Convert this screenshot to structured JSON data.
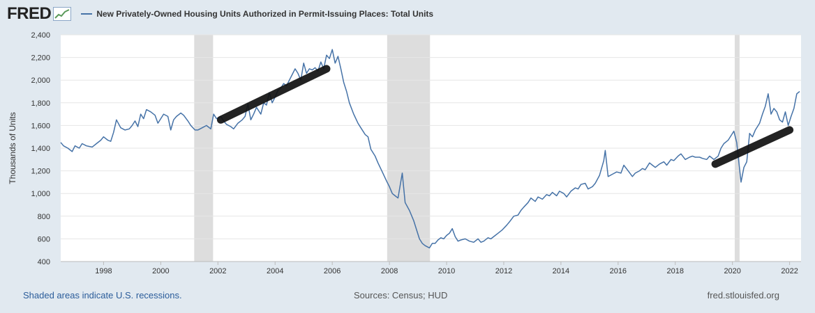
{
  "brand": {
    "logo_text": "FRED"
  },
  "colors": {
    "series": "#4572a7",
    "recession": "#dddddd",
    "annotation": "#111111",
    "background": "#e1e9f0"
  },
  "footer": {
    "note": "Shaded areas indicate U.S. recessions.",
    "sources": "Sources: Census; HUD",
    "url": "fred.stlouisfed.org"
  },
  "chart_data": {
    "type": "line",
    "title": "New Privately-Owned Housing Units Authorized in Permit-Issuing Places: Total Units",
    "ylabel": "Thousands of Units",
    "xlim": [
      1996.5,
      2022.4
    ],
    "ylim": [
      400,
      2400
    ],
    "yticks": [
      "400",
      "600",
      "800",
      "1,000",
      "1,200",
      "1,400",
      "1,600",
      "1,800",
      "2,000",
      "2,200",
      "2,400"
    ],
    "xticks": [
      "1998",
      "2000",
      "2002",
      "2004",
      "2006",
      "2008",
      "2010",
      "2012",
      "2014",
      "2016",
      "2018",
      "2020",
      "2022"
    ],
    "grid": "horizontal",
    "recessions": [
      [
        2001.17,
        2001.83
      ],
      [
        2007.92,
        2009.42
      ],
      [
        2020.08,
        2020.25
      ]
    ],
    "series": [
      {
        "name": "New Privately-Owned Housing Units Authorized in Permit-Issuing Places: Total Units",
        "points": [
          [
            1996.5,
            1450
          ],
          [
            1996.6,
            1420
          ],
          [
            1996.75,
            1400
          ],
          [
            1996.9,
            1370
          ],
          [
            1997.0,
            1420
          ],
          [
            1997.15,
            1400
          ],
          [
            1997.25,
            1440
          ],
          [
            1997.4,
            1420
          ],
          [
            1997.6,
            1410
          ],
          [
            1997.75,
            1440
          ],
          [
            1997.9,
            1470
          ],
          [
            1998.0,
            1500
          ],
          [
            1998.15,
            1470
          ],
          [
            1998.25,
            1460
          ],
          [
            1998.35,
            1540
          ],
          [
            1998.45,
            1650
          ],
          [
            1998.6,
            1580
          ],
          [
            1998.75,
            1560
          ],
          [
            1998.9,
            1570
          ],
          [
            1999.0,
            1600
          ],
          [
            1999.1,
            1640
          ],
          [
            1999.2,
            1590
          ],
          [
            1999.3,
            1700
          ],
          [
            1999.4,
            1660
          ],
          [
            1999.5,
            1740
          ],
          [
            1999.65,
            1720
          ],
          [
            1999.8,
            1690
          ],
          [
            1999.9,
            1620
          ],
          [
            2000.0,
            1660
          ],
          [
            2000.1,
            1700
          ],
          [
            2000.25,
            1680
          ],
          [
            2000.35,
            1560
          ],
          [
            2000.45,
            1650
          ],
          [
            2000.55,
            1680
          ],
          [
            2000.7,
            1710
          ],
          [
            2000.8,
            1690
          ],
          [
            2000.95,
            1640
          ],
          [
            2001.05,
            1600
          ],
          [
            2001.2,
            1560
          ],
          [
            2001.3,
            1560
          ],
          [
            2001.45,
            1580
          ],
          [
            2001.6,
            1600
          ],
          [
            2001.75,
            1570
          ],
          [
            2001.85,
            1700
          ],
          [
            2001.95,
            1660
          ],
          [
            2002.1,
            1680
          ],
          [
            2002.2,
            1640
          ],
          [
            2002.3,
            1610
          ],
          [
            2002.45,
            1590
          ],
          [
            2002.55,
            1570
          ],
          [
            2002.7,
            1620
          ],
          [
            2002.85,
            1650
          ],
          [
            2002.95,
            1680
          ],
          [
            2003.05,
            1790
          ],
          [
            2003.15,
            1650
          ],
          [
            2003.25,
            1700
          ],
          [
            2003.35,
            1760
          ],
          [
            2003.5,
            1700
          ],
          [
            2003.6,
            1800
          ],
          [
            2003.7,
            1780
          ],
          [
            2003.8,
            1890
          ],
          [
            2003.9,
            1800
          ],
          [
            2004.0,
            1850
          ],
          [
            2004.1,
            1910
          ],
          [
            2004.2,
            1930
          ],
          [
            2004.3,
            1970
          ],
          [
            2004.4,
            1950
          ],
          [
            2004.5,
            2000
          ],
          [
            2004.6,
            2050
          ],
          [
            2004.7,
            2100
          ],
          [
            2004.8,
            2060
          ],
          [
            2004.9,
            2000
          ],
          [
            2005.0,
            2150
          ],
          [
            2005.1,
            2060
          ],
          [
            2005.2,
            2100
          ],
          [
            2005.3,
            2090
          ],
          [
            2005.4,
            2110
          ],
          [
            2005.5,
            2080
          ],
          [
            2005.6,
            2160
          ],
          [
            2005.7,
            2100
          ],
          [
            2005.8,
            2220
          ],
          [
            2005.9,
            2190
          ],
          [
            2006.0,
            2270
          ],
          [
            2006.1,
            2150
          ],
          [
            2006.2,
            2210
          ],
          [
            2006.3,
            2100
          ],
          [
            2006.4,
            1980
          ],
          [
            2006.5,
            1900
          ],
          [
            2006.6,
            1800
          ],
          [
            2006.75,
            1700
          ],
          [
            2006.9,
            1620
          ],
          [
            2007.0,
            1580
          ],
          [
            2007.15,
            1520
          ],
          [
            2007.25,
            1500
          ],
          [
            2007.35,
            1390
          ],
          [
            2007.5,
            1330
          ],
          [
            2007.6,
            1270
          ],
          [
            2007.75,
            1190
          ],
          [
            2007.9,
            1110
          ],
          [
            2008.0,
            1060
          ],
          [
            2008.1,
            1000
          ],
          [
            2008.2,
            980
          ],
          [
            2008.3,
            960
          ],
          [
            2008.45,
            1180
          ],
          [
            2008.55,
            920
          ],
          [
            2008.7,
            850
          ],
          [
            2008.85,
            760
          ],
          [
            2008.95,
            680
          ],
          [
            2009.05,
            600
          ],
          [
            2009.15,
            560
          ],
          [
            2009.25,
            540
          ],
          [
            2009.4,
            520
          ],
          [
            2009.5,
            560
          ],
          [
            2009.6,
            560
          ],
          [
            2009.7,
            590
          ],
          [
            2009.8,
            610
          ],
          [
            2009.9,
            600
          ],
          [
            2010.0,
            630
          ],
          [
            2010.1,
            650
          ],
          [
            2010.2,
            690
          ],
          [
            2010.3,
            620
          ],
          [
            2010.4,
            580
          ],
          [
            2010.5,
            590
          ],
          [
            2010.65,
            600
          ],
          [
            2010.8,
            580
          ],
          [
            2010.95,
            570
          ],
          [
            2011.1,
            600
          ],
          [
            2011.2,
            570
          ],
          [
            2011.3,
            580
          ],
          [
            2011.45,
            610
          ],
          [
            2011.55,
            600
          ],
          [
            2011.7,
            630
          ],
          [
            2011.8,
            650
          ],
          [
            2011.95,
            680
          ],
          [
            2012.1,
            720
          ],
          [
            2012.2,
            750
          ],
          [
            2012.35,
            800
          ],
          [
            2012.5,
            810
          ],
          [
            2012.6,
            850
          ],
          [
            2012.7,
            880
          ],
          [
            2012.85,
            920
          ],
          [
            2012.95,
            960
          ],
          [
            2013.1,
            930
          ],
          [
            2013.2,
            970
          ],
          [
            2013.35,
            950
          ],
          [
            2013.5,
            990
          ],
          [
            2013.6,
            980
          ],
          [
            2013.7,
            1010
          ],
          [
            2013.85,
            980
          ],
          [
            2013.95,
            1020
          ],
          [
            2014.1,
            1000
          ],
          [
            2014.2,
            970
          ],
          [
            2014.35,
            1020
          ],
          [
            2014.5,
            1050
          ],
          [
            2014.6,
            1040
          ],
          [
            2014.7,
            1080
          ],
          [
            2014.85,
            1090
          ],
          [
            2014.95,
            1040
          ],
          [
            2015.1,
            1060
          ],
          [
            2015.2,
            1090
          ],
          [
            2015.35,
            1160
          ],
          [
            2015.5,
            1290
          ],
          [
            2015.55,
            1380
          ],
          [
            2015.65,
            1150
          ],
          [
            2015.8,
            1170
          ],
          [
            2015.95,
            1190
          ],
          [
            2016.1,
            1180
          ],
          [
            2016.2,
            1250
          ],
          [
            2016.35,
            1200
          ],
          [
            2016.5,
            1150
          ],
          [
            2016.6,
            1180
          ],
          [
            2016.75,
            1200
          ],
          [
            2016.85,
            1220
          ],
          [
            2016.95,
            1210
          ],
          [
            2017.1,
            1270
          ],
          [
            2017.2,
            1250
          ],
          [
            2017.3,
            1230
          ],
          [
            2017.45,
            1260
          ],
          [
            2017.6,
            1280
          ],
          [
            2017.7,
            1250
          ],
          [
            2017.85,
            1300
          ],
          [
            2017.95,
            1290
          ],
          [
            2018.1,
            1330
          ],
          [
            2018.2,
            1350
          ],
          [
            2018.35,
            1300
          ],
          [
            2018.5,
            1320
          ],
          [
            2018.6,
            1330
          ],
          [
            2018.7,
            1320
          ],
          [
            2018.85,
            1320
          ],
          [
            2018.95,
            1310
          ],
          [
            2019.1,
            1300
          ],
          [
            2019.2,
            1330
          ],
          [
            2019.35,
            1300
          ],
          [
            2019.5,
            1330
          ],
          [
            2019.6,
            1400
          ],
          [
            2019.7,
            1440
          ],
          [
            2019.85,
            1470
          ],
          [
            2019.95,
            1510
          ],
          [
            2020.05,
            1550
          ],
          [
            2020.15,
            1450
          ],
          [
            2020.3,
            1100
          ],
          [
            2020.4,
            1230
          ],
          [
            2020.5,
            1280
          ],
          [
            2020.6,
            1530
          ],
          [
            2020.7,
            1500
          ],
          [
            2020.8,
            1560
          ],
          [
            2020.95,
            1620
          ],
          [
            2021.05,
            1700
          ],
          [
            2021.15,
            1770
          ],
          [
            2021.25,
            1880
          ],
          [
            2021.35,
            1700
          ],
          [
            2021.45,
            1750
          ],
          [
            2021.55,
            1720
          ],
          [
            2021.65,
            1650
          ],
          [
            2021.75,
            1630
          ],
          [
            2021.85,
            1720
          ],
          [
            2021.95,
            1600
          ],
          [
            2022.05,
            1680
          ],
          [
            2022.15,
            1750
          ],
          [
            2022.25,
            1880
          ],
          [
            2022.35,
            1900
          ]
        ]
      }
    ],
    "annotations": [
      {
        "type": "hand-drawn-trend",
        "from": [
          2002.1,
          1650
        ],
        "to": [
          2005.8,
          2100
        ]
      },
      {
        "type": "hand-drawn-trend",
        "from": [
          2019.4,
          1260
        ],
        "to": [
          2022.0,
          1560
        ]
      }
    ]
  }
}
